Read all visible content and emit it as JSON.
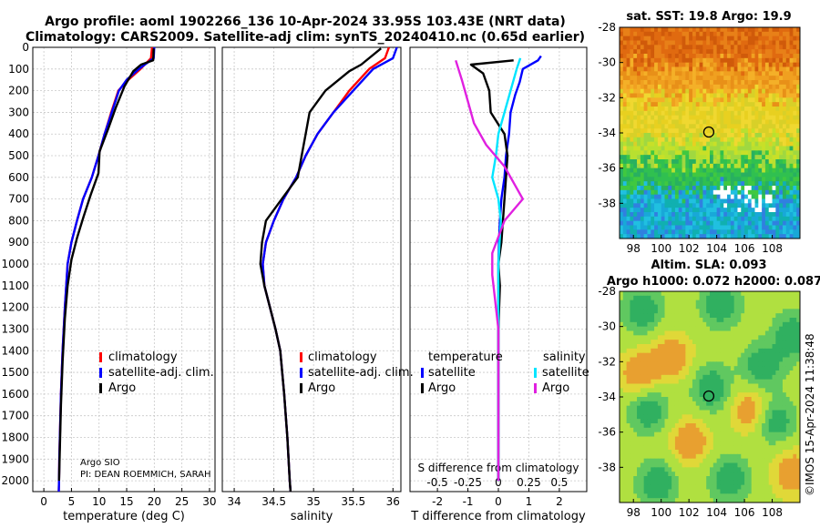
{
  "header": {
    "line1": "Argo profile: aoml 1902266_136 10-Apr-2024 33.95S 103.43E (NRT data)",
    "line2": "Climatology: CARS2009. Satellite-adj clim: synTS_20240410.nc (0.65d earlier)"
  },
  "colors": {
    "climatology": "#ff0000",
    "satellite": "#0000ff",
    "argo": "#000000",
    "sat_t": "#0000ff",
    "sat_s": "#00e5ff",
    "argo_t": "#000000",
    "argo_s": "#e020e0"
  },
  "legend": {
    "climatology": "climatology",
    "satellite": "satellite-adj. clim.",
    "argo": "Argo"
  },
  "diff_legend": {
    "temp_title": "temperature",
    "sal_title": "salinity",
    "satellite": "satellite",
    "argo": "Argo"
  },
  "credit": {
    "line1": "Argo SIO",
    "line2": "PI: DEAN ROEMMICH, SARAH"
  },
  "sst_panel": {
    "title": "sat. SST: 19.8 Argo: 19.9",
    "float_lon": 103.43,
    "float_lat": -33.95
  },
  "sla_panel": {
    "title1": "Altim. SLA: 0.093",
    "title2": "Argo h1000: 0.072 h2000: 0.087"
  },
  "watermark": "©IMOS 15-Apr-2024 11:38:48",
  "chart_data": [
    {
      "type": "line",
      "name": "temperature",
      "xlabel": "temperature (deg C)",
      "xlim": [
        -2,
        31
      ],
      "ylim": [
        2050,
        0
      ],
      "xticks": [
        0,
        5,
        10,
        15,
        20,
        25,
        30
      ],
      "yticks": [
        0,
        100,
        200,
        300,
        400,
        500,
        600,
        700,
        800,
        900,
        1000,
        1100,
        1200,
        1300,
        1400,
        1500,
        1600,
        1700,
        1800,
        1900,
        2000
      ],
      "series": [
        {
          "name": "climatology",
          "x": [
            19.6,
            19.4,
            17.5,
            15.3,
            13.5,
            12.2,
            11.0,
            9.9,
            8.7,
            7.1,
            6.0,
            5.0,
            4.3,
            3.8,
            3.4,
            3.1,
            2.9,
            2.8,
            2.75,
            2.7
          ],
          "y": [
            0,
            50,
            100,
            150,
            200,
            300,
            400,
            500,
            600,
            700,
            800,
            900,
            1000,
            1200,
            1400,
            1600,
            1800,
            1900,
            2000,
            2050
          ]
        },
        {
          "name": "satellite-adj. clim.",
          "x": [
            20.0,
            19.9,
            17.2,
            15.0,
            13.6,
            12.3,
            11.0,
            9.9,
            8.7,
            7.1,
            6.0,
            5.0,
            4.3,
            3.8,
            3.4,
            3.1,
            2.9,
            2.8,
            2.75,
            2.7
          ],
          "y": [
            0,
            50,
            100,
            150,
            200,
            300,
            400,
            500,
            600,
            700,
            800,
            900,
            1000,
            1200,
            1400,
            1600,
            1800,
            1900,
            2000,
            2050
          ]
        },
        {
          "name": "Argo",
          "x": [
            19.9,
            19.8,
            17.6,
            16.2,
            14.6,
            13.0,
            11.6,
            10.1,
            9.9,
            8.5,
            7.2,
            6.0,
            5.0,
            4.3,
            3.8,
            3.4,
            3.1,
            2.9,
            2.8,
            2.75
          ],
          "y": [
            5,
            60,
            80,
            110,
            180,
            280,
            380,
            480,
            580,
            680,
            780,
            880,
            980,
            1100,
            1250,
            1450,
            1650,
            1850,
            1950,
            2000
          ]
        }
      ]
    },
    {
      "type": "line",
      "name": "salinity",
      "xlabel": "salinity",
      "xlim": [
        33.85,
        36.1
      ],
      "ylim": [
        2050,
        0
      ],
      "xticks": [
        34,
        34.5,
        35,
        35.5,
        36
      ],
      "series": [
        {
          "name": "climatology",
          "x": [
            35.95,
            35.9,
            35.7,
            35.45,
            35.25,
            35.05,
            34.9,
            34.78,
            34.62,
            34.5,
            34.4,
            34.36,
            34.38,
            34.45,
            34.52,
            34.58,
            34.63,
            34.67,
            34.7,
            34.71
          ],
          "y": [
            0,
            50,
            100,
            200,
            300,
            400,
            500,
            600,
            700,
            800,
            900,
            1000,
            1100,
            1200,
            1300,
            1400,
            1600,
            1800,
            2000,
            2050
          ]
        },
        {
          "name": "satellite-adj. clim.",
          "x": [
            36.05,
            36.0,
            35.75,
            35.5,
            35.25,
            35.05,
            34.9,
            34.78,
            34.62,
            34.5,
            34.4,
            34.36,
            34.38,
            34.45,
            34.52,
            34.58,
            34.63,
            34.67,
            34.7,
            34.71
          ],
          "y": [
            0,
            50,
            100,
            200,
            300,
            400,
            500,
            600,
            700,
            800,
            900,
            1000,
            1100,
            1200,
            1300,
            1400,
            1600,
            1800,
            2000,
            2050
          ]
        },
        {
          "name": "Argo",
          "x": [
            35.85,
            35.6,
            35.45,
            35.15,
            34.95,
            34.9,
            34.85,
            34.8,
            34.6,
            34.4,
            34.35,
            34.33,
            34.38,
            34.45,
            34.52,
            34.58,
            34.63,
            34.67,
            34.7,
            34.71
          ],
          "y": [
            5,
            80,
            110,
            200,
            300,
            400,
            500,
            600,
            700,
            800,
            900,
            1000,
            1100,
            1200,
            1300,
            1400,
            1600,
            1800,
            2000,
            2050
          ]
        }
      ]
    },
    {
      "type": "line",
      "name": "difference",
      "xlabel": "T difference from climatology",
      "xlim": [
        -2.9,
        2.9
      ],
      "ylim": [
        2050,
        0
      ],
      "xticks": [
        -2,
        -1,
        0,
        1,
        2
      ],
      "secondary_xlabel": "S difference from climatology",
      "secondary_xticks": [
        -0.5,
        -0.25,
        0,
        0.25,
        0.5
      ],
      "series": [
        {
          "name": "temperature satellite",
          "x": [
            1.4,
            1.3,
            0.8,
            0.7,
            0.55,
            0.4,
            0.35,
            0.25,
            0.2,
            0.1,
            0.05,
            0.02,
            0.0,
            0.0,
            0.0,
            0.0,
            0.0
          ],
          "y": [
            40,
            60,
            100,
            160,
            220,
            300,
            400,
            500,
            600,
            700,
            800,
            900,
            1000,
            1200,
            1500,
            1800,
            2000
          ]
        },
        {
          "name": "temperature Argo",
          "x": [
            0.5,
            -0.9,
            -0.5,
            -0.3,
            -0.25,
            0.2,
            0.3,
            0.25,
            0.2,
            0.15,
            0.1,
            0.0,
            0.05,
            0.0,
            0.0,
            0.0,
            0.0
          ],
          "y": [
            60,
            80,
            120,
            200,
            300,
            400,
            500,
            600,
            700,
            800,
            900,
            1000,
            1100,
            1300,
            1600,
            1800,
            2000
          ]
        },
        {
          "name": "salinity satellite",
          "x": [
            0.18,
            0.15,
            0.1,
            0.05,
            0.0,
            -0.02,
            -0.05,
            0.0,
            0.02,
            0.0,
            0.0,
            0.0,
            0.0
          ],
          "y": [
            50,
            100,
            200,
            300,
            400,
            500,
            600,
            700,
            800,
            1000,
            1300,
            1700,
            2000
          ]
        },
        {
          "name": "salinity Argo",
          "x": [
            -0.35,
            -0.3,
            -0.25,
            -0.2,
            -0.1,
            0.05,
            0.15,
            0.2,
            0.05,
            -0.05,
            -0.05,
            0.0,
            0.0,
            0.0
          ],
          "y": [
            60,
            150,
            250,
            350,
            450,
            550,
            650,
            700,
            800,
            950,
            1050,
            1300,
            1700,
            2000
          ]
        }
      ]
    },
    {
      "type": "heatmap",
      "name": "sst_map",
      "title": "sat. SST: 19.8 Argo: 19.9",
      "xlim": [
        97,
        110
      ],
      "ylim": [
        -40,
        -28
      ],
      "xticks": [
        98,
        100,
        102,
        104,
        106,
        108
      ],
      "yticks": [
        -28,
        -30,
        -32,
        -34,
        -36,
        -38
      ],
      "float": {
        "lon": 103.43,
        "lat": -33.95
      }
    },
    {
      "type": "heatmap",
      "name": "sla_map",
      "title": "Altim. SLA: 0.093",
      "xlim": [
        97,
        110
      ],
      "ylim": [
        -40,
        -28
      ],
      "xticks": [
        98,
        100,
        102,
        104,
        106,
        108
      ],
      "yticks": [
        -28,
        -30,
        -32,
        -34,
        -36,
        -38
      ],
      "float": {
        "lon": 103.43,
        "lat": -33.95
      }
    }
  ]
}
